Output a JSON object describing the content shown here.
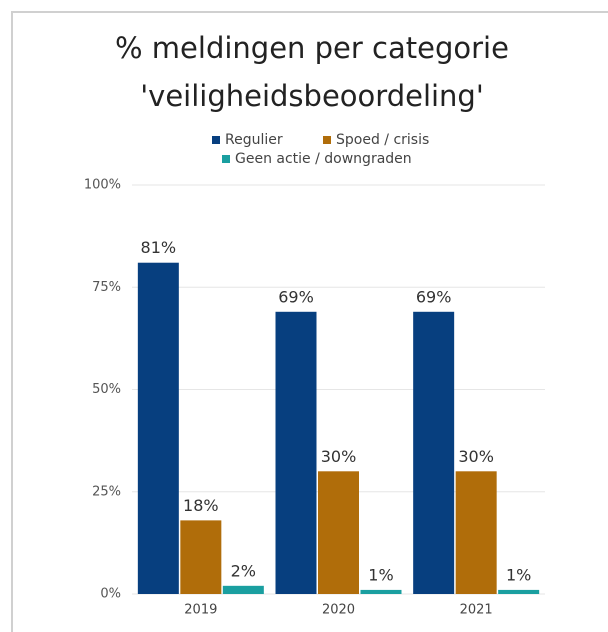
{
  "chart_data": {
    "type": "bar",
    "title": [
      "% meldingen per categorie",
      "'veiligheidsbeoordeling'"
    ],
    "categories": [
      "2019",
      "2020",
      "2021"
    ],
    "series": [
      {
        "name": "Regulier",
        "color": "#073f7f",
        "values": [
          81,
          69,
          69
        ],
        "value_labels": [
          "81%",
          "69%",
          "69%"
        ]
      },
      {
        "name": "Spoed / crisis",
        "color": "#b06d0a",
        "values": [
          18,
          30,
          30
        ],
        "value_labels": [
          "18%",
          "30%",
          "30%"
        ]
      },
      {
        "name": "Geen actie / downgraden",
        "color": "#1a9fa0",
        "values": [
          2,
          1,
          1
        ],
        "value_labels": [
          "2%",
          "1%",
          "1%"
        ]
      }
    ],
    "ylim": [
      0,
      100
    ],
    "yticks": [
      {
        "value": 0,
        "label": "0%"
      },
      {
        "value": 25,
        "label": "25%"
      },
      {
        "value": 50,
        "label": "50%"
      },
      {
        "value": 75,
        "label": "75%"
      },
      {
        "value": 100,
        "label": "100%"
      }
    ],
    "grid": true,
    "legend": "top"
  }
}
